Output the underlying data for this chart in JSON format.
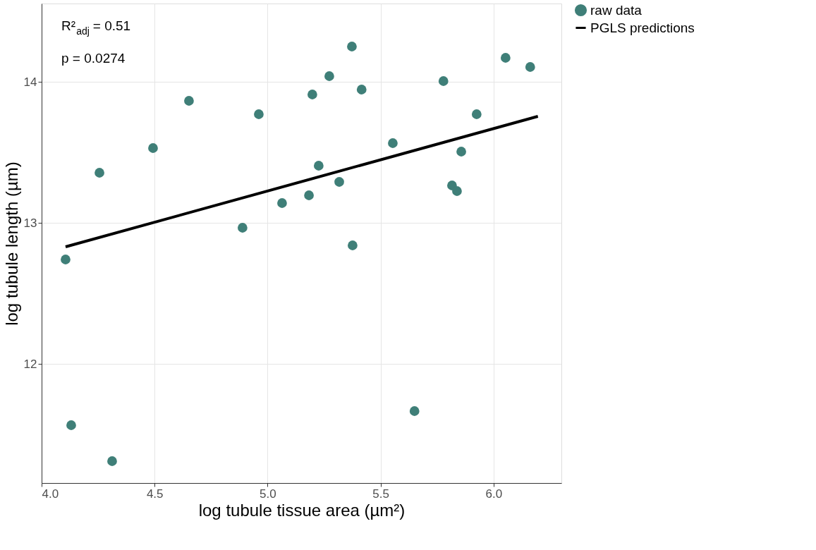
{
  "chart_data": {
    "type": "scatter",
    "xlabel": "log tubule tissue area (µm²)",
    "ylabel": "log tubule length (µm)",
    "xlim": [
      4.0,
      6.3
    ],
    "xticks": [
      {
        "value": 4,
        "label": "4.0"
      },
      4.5,
      {
        "value": 5,
        "label": "5.0"
      },
      5.5,
      {
        "value": 6,
        "label": "6.0"
      }
    ],
    "ylim": [
      11.155,
      14.555
    ],
    "yticks": [
      12,
      13,
      14
    ],
    "grid": true,
    "legend": "right",
    "annotations": [
      "R²$_{adj}$ = 0.51",
      "p = 0.0274"
    ],
    "series": [
      {
        "name": "raw data",
        "marker": "circle",
        "color": "#3f7f78",
        "x": [
          4.106,
          4.131,
          4.256,
          4.312,
          4.493,
          4.652,
          4.889,
          4.961,
          5.064,
          5.183,
          5.198,
          5.226,
          5.273,
          5.317,
          5.373,
          5.376,
          5.416,
          5.554,
          5.65,
          5.778,
          5.816,
          5.838,
          5.857,
          5.925,
          6.053,
          6.162
        ],
        "values": [
          12.74,
          11.565,
          13.355,
          11.31,
          13.53,
          13.865,
          12.965,
          13.77,
          13.14,
          13.195,
          13.91,
          13.405,
          14.04,
          13.29,
          14.25,
          12.84,
          13.945,
          13.565,
          11.665,
          14.005,
          13.265,
          13.225,
          13.505,
          13.77,
          14.17,
          14.105
        ]
      },
      {
        "name": "PGLS predictions",
        "type": "line",
        "color": "#000000",
        "line_style": "solid",
        "x": [
          4.106,
          6.196
        ],
        "values": [
          12.83,
          13.755
        ]
      }
    ]
  }
}
